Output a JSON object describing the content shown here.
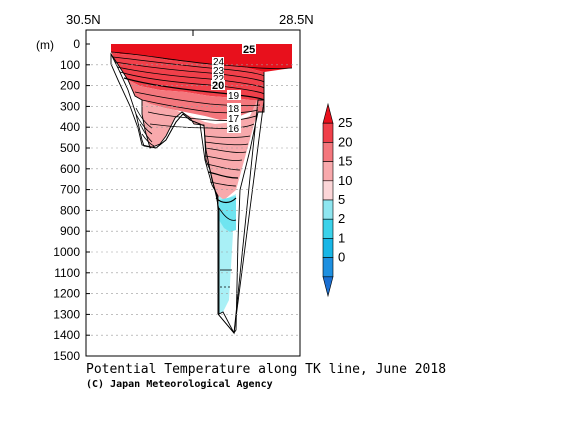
{
  "chart_data": {
    "type": "heatmap",
    "title": "Potential Temperature along TK line, June 2018",
    "credit": "(C) Japan Meteorological Agency",
    "x_labels": {
      "left": "30.5N",
      "right": "28.5N"
    },
    "ylabel": "(m)",
    "yticks": [
      0,
      100,
      200,
      300,
      400,
      500,
      600,
      700,
      800,
      900,
      1000,
      1100,
      1200,
      1300,
      1400,
      1500
    ],
    "ylim": [
      0,
      1500
    ],
    "y_inverted": true,
    "grid": "dashed horizontal",
    "colorbar": {
      "levels": [
        "25",
        "20",
        "15",
        "10",
        "5",
        "2",
        "1",
        "0"
      ],
      "colors": [
        "#e8101c",
        "#f0404a",
        "#f4777d",
        "#f8a9ac",
        "#fcd6d8",
        "#8ee6f0",
        "#3bd2ea",
        "#18b6e6",
        "#1e90e0",
        "#1a6fd2"
      ]
    },
    "contour_labels": [
      "25",
      "24",
      "23",
      "22",
      "21",
      "20",
      "19",
      "18",
      "17",
      "16"
    ],
    "layers": [
      {
        "range": "above 20",
        "depth_top": 0,
        "depth_bottom": 150
      },
      {
        "range": "15-20",
        "depth_top": 150,
        "depth_bottom": 320
      },
      {
        "range": "10-15",
        "depth_top": 320,
        "depth_bottom": 520
      },
      {
        "range": "5-10",
        "depth_top": 520,
        "depth_bottom": 780
      },
      {
        "range": "2-5",
        "depth_top": 780,
        "depth_bottom": 1300
      }
    ]
  }
}
